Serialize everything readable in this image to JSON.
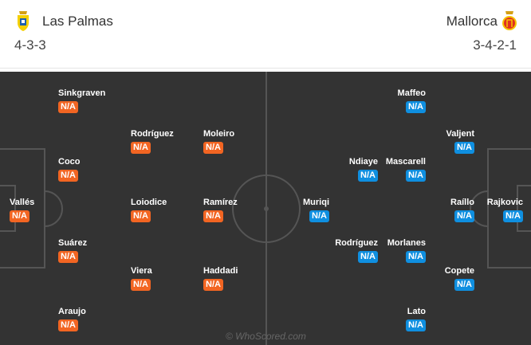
{
  "home": {
    "name": "Las Palmas",
    "formation": "4-3-3",
    "crest_icon": "las-palmas-crest",
    "color": "#f26522",
    "players": [
      {
        "name": "Sinkgraven",
        "rating": "N/A"
      },
      {
        "name": "Rodríguez",
        "rating": "N/A"
      },
      {
        "name": "Moleiro",
        "rating": "N/A"
      },
      {
        "name": "Coco",
        "rating": "N/A"
      },
      {
        "name": "Vallés",
        "rating": "N/A"
      },
      {
        "name": "Loiodice",
        "rating": "N/A"
      },
      {
        "name": "Ramírez",
        "rating": "N/A"
      },
      {
        "name": "Suárez",
        "rating": "N/A"
      },
      {
        "name": "Viera",
        "rating": "N/A"
      },
      {
        "name": "Haddadi",
        "rating": "N/A"
      },
      {
        "name": "Araujo",
        "rating": "N/A"
      }
    ]
  },
  "away": {
    "name": "Mallorca",
    "formation": "3-4-2-1",
    "crest_icon": "mallorca-crest",
    "color": "#0f8fe0",
    "players": [
      {
        "name": "Maffeo",
        "rating": "N/A"
      },
      {
        "name": "Valjent",
        "rating": "N/A"
      },
      {
        "name": "Ndiaye",
        "rating": "N/A"
      },
      {
        "name": "Mascarell",
        "rating": "N/A"
      },
      {
        "name": "Muriqi",
        "rating": "N/A"
      },
      {
        "name": "Raíllo",
        "rating": "N/A"
      },
      {
        "name": "Rajkovic",
        "rating": "N/A"
      },
      {
        "name": "Rodríguez",
        "rating": "N/A"
      },
      {
        "name": "Morlanes",
        "rating": "N/A"
      },
      {
        "name": "Copete",
        "rating": "N/A"
      },
      {
        "name": "Lato",
        "rating": "N/A"
      }
    ]
  },
  "watermark": "© WhoScored.com"
}
